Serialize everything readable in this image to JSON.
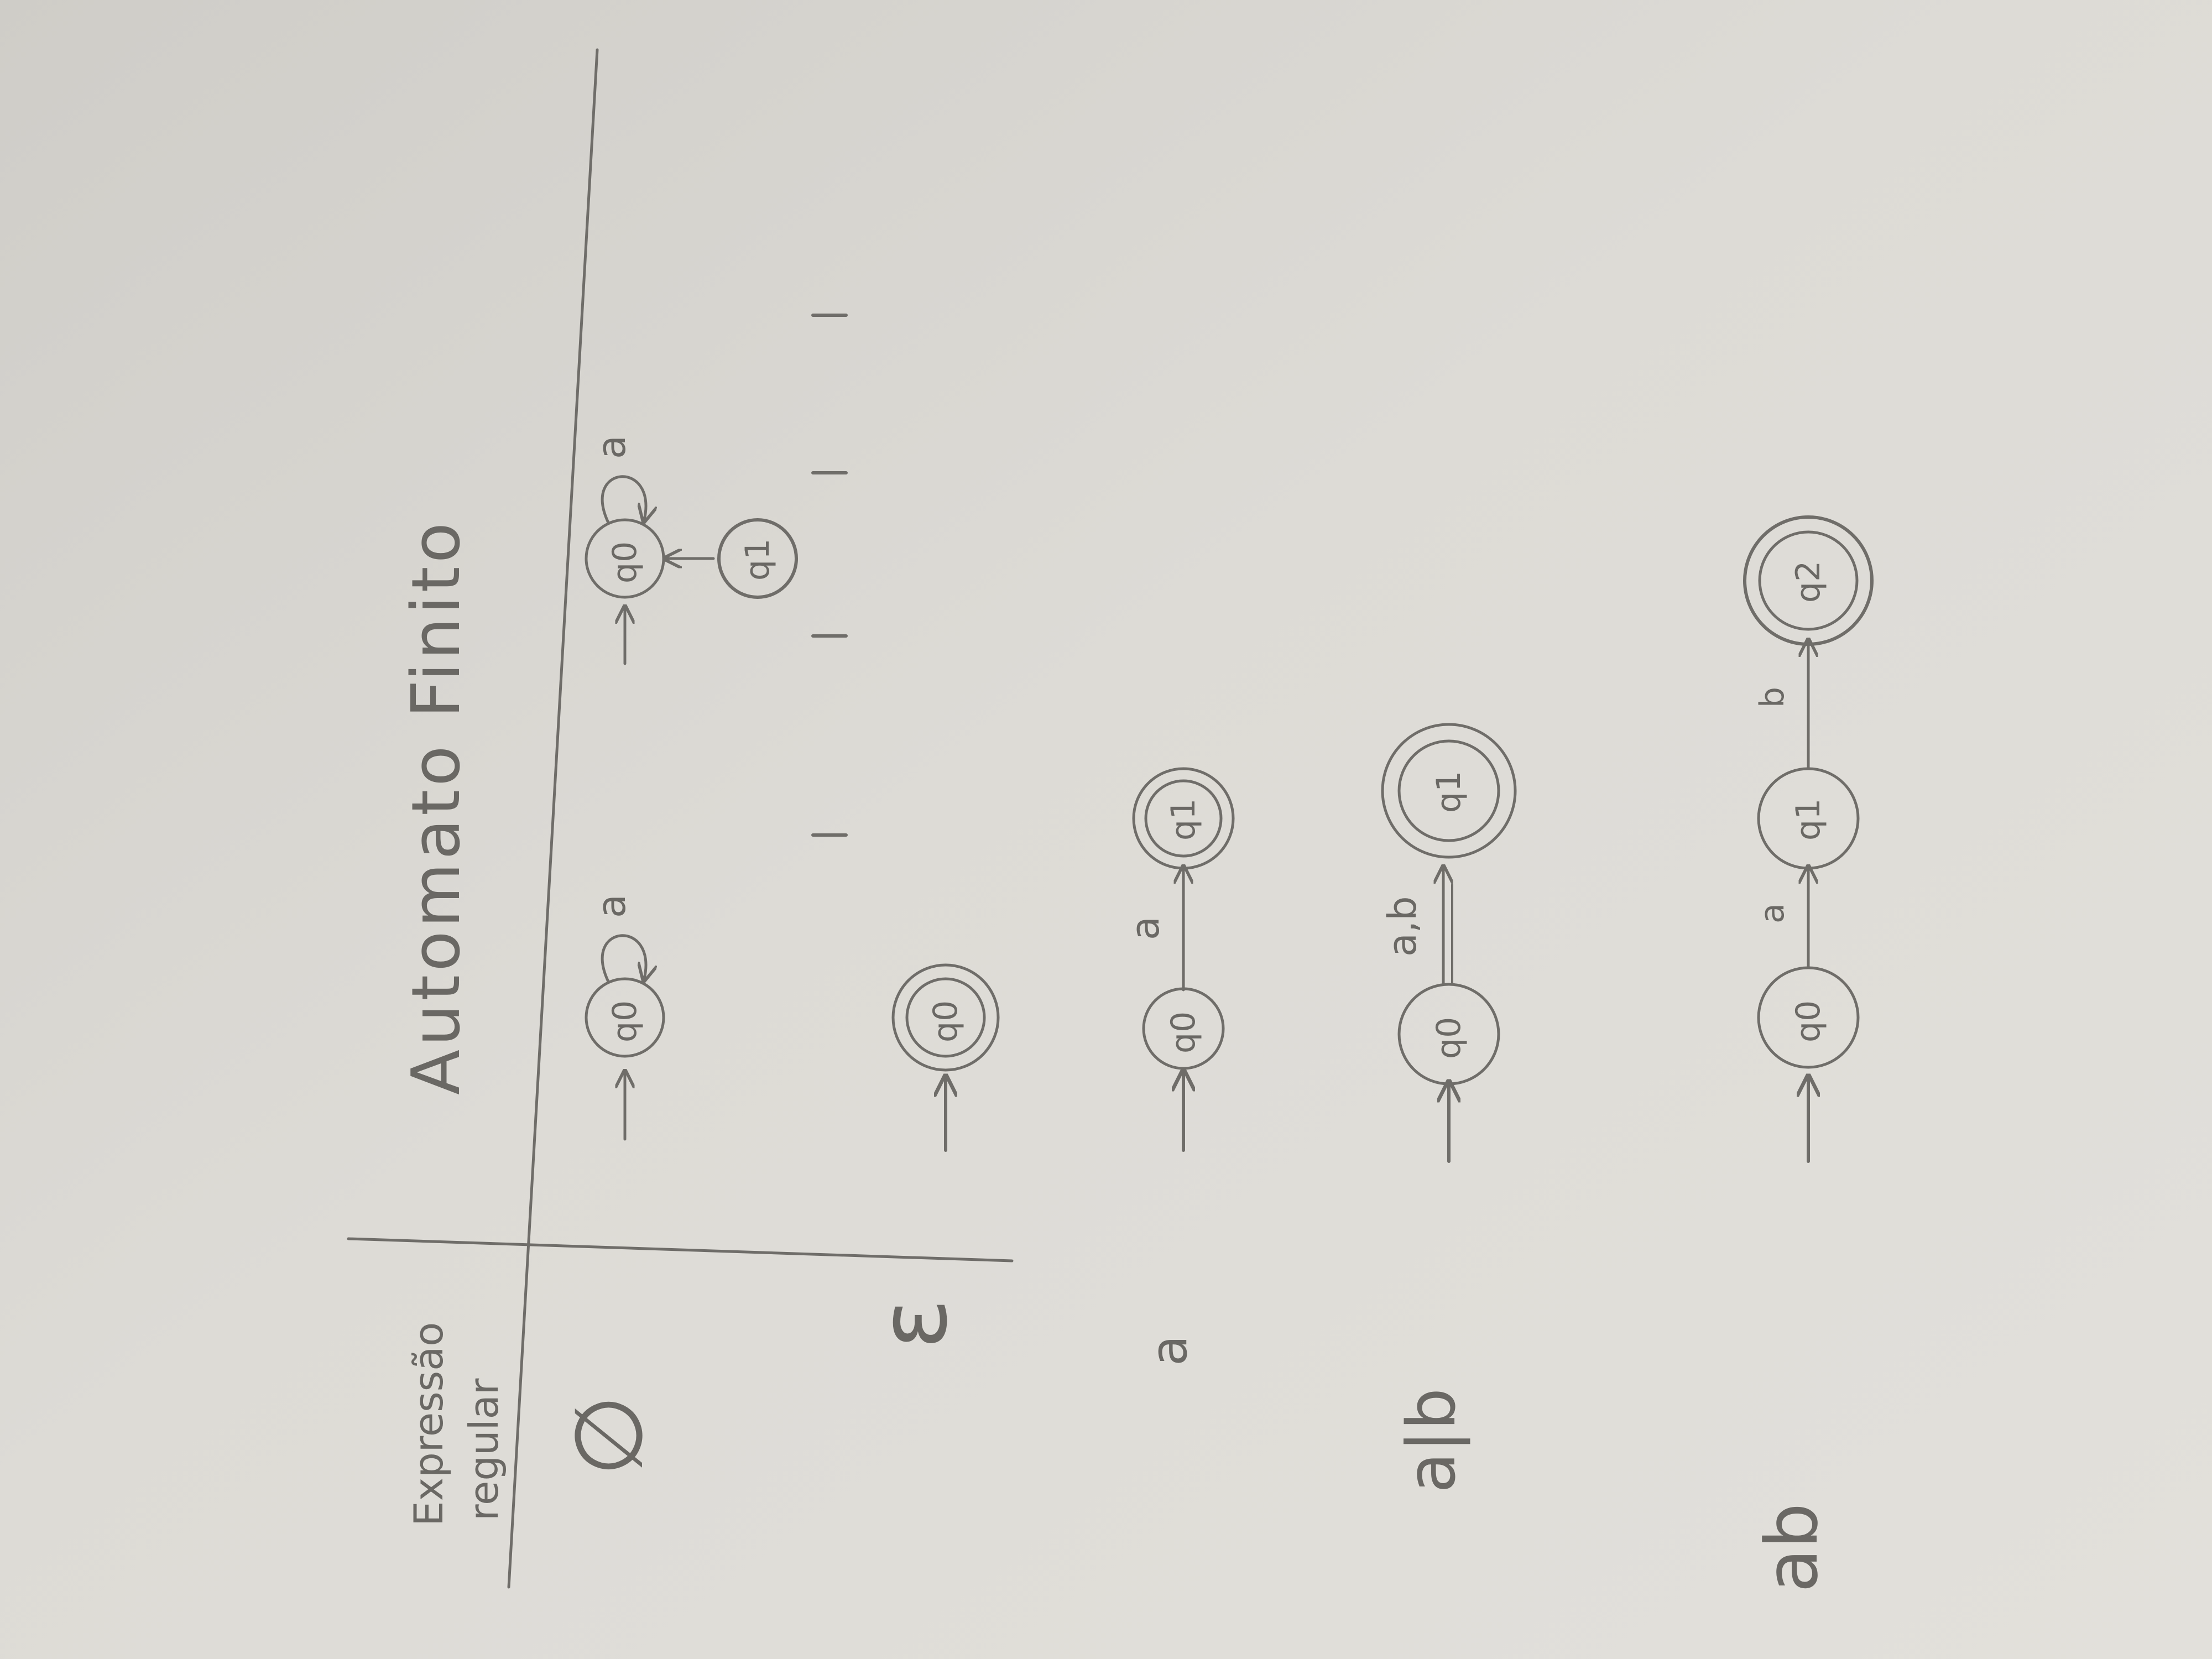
{
  "table": {
    "header_left_line1": "Expressão",
    "header_left_line2": "regular",
    "header_right": "Automato  Finito"
  },
  "rows": [
    {
      "expr": "∅",
      "start_state": "q0",
      "self_loop_label": "a",
      "second_start_state": "q0",
      "second_loop_label": "a",
      "unreachable_state": "q1"
    },
    {
      "expr": "ε",
      "state": "q0"
    },
    {
      "expr": "a",
      "state_from": "q0",
      "transition_label": "a",
      "state_to": "q1"
    },
    {
      "expr": "a|b",
      "state_from": "q0",
      "transition_label": "a,b",
      "state_to": "q1"
    },
    {
      "expr": "ab",
      "state_0": "q0",
      "label_1": "a",
      "state_1": "q1",
      "label_2": "b",
      "state_2": "q2"
    }
  ],
  "colors": {
    "paper": "#dcdad5",
    "ink": "#6f6d69"
  }
}
